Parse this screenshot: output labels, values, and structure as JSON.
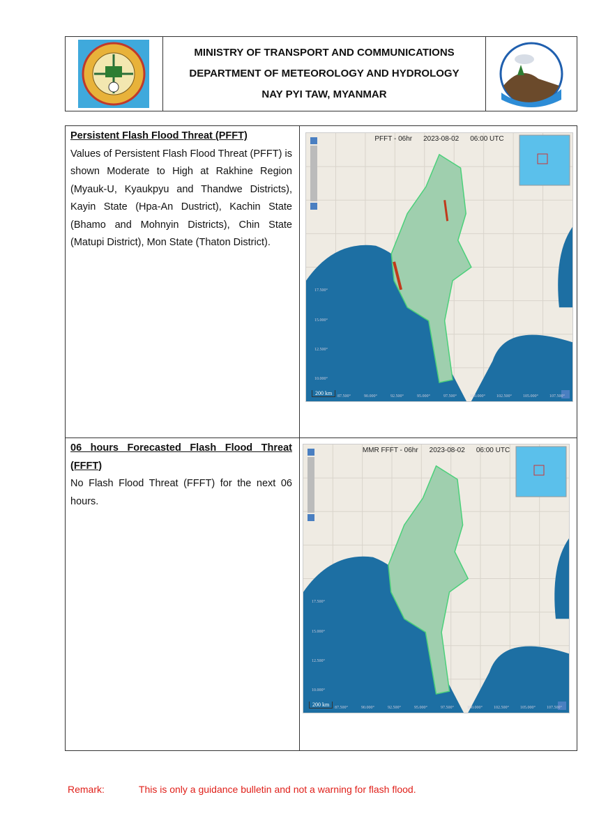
{
  "header": {
    "line1": "MINISTRY OF TRANSPORT AND COMMUNICATIONS",
    "line2": "DEPARTMENT OF METEOROLOGY AND HYDROLOGY",
    "line3": "NAY PYI TAW, MYANMAR"
  },
  "sections": [
    {
      "title": "Persistent Flash Flood Threat (PFFT)",
      "body": "Values of Persistent Flash Flood Threat (PFFT) is shown Moderate to High at Rakhine Region (Myauk-U, Kyaukpyu and Thandwe Districts), Kayin State (Hpa-An Dustrict), Kachin State (Bhamo and Mohnyin Districts), Chin State (Matupi District), Mon State (Thaton District).",
      "map": {
        "product": "PFFT - 06hr",
        "date": "2023-08-02",
        "time": "06:00 UTC",
        "scale": "200 km",
        "threat": true
      }
    },
    {
      "title": "06 hours Forecasted Flash Flood Threat (FFFT)",
      "body": "No Flash Flood Threat (FFFT) for the next 06 hours.",
      "map": {
        "product": "MMR FFFT - 06hr",
        "date": "2023-08-02",
        "time": "06:00 UTC",
        "scale": "200 km",
        "threat": false
      }
    }
  ],
  "map_labels": {
    "lat": [
      "17.500°",
      "15.000°",
      "12.500°",
      "10.000°"
    ],
    "lon": [
      "87.500°",
      "90.000°",
      "92.500°",
      "95.000°",
      "97.500°",
      "100.000°",
      "102.500°",
      "105.000°",
      "107.500°"
    ]
  },
  "remark": {
    "label": "Remark:",
    "text": "This is only a guidance bulletin and not a warning for flash flood."
  },
  "colors": {
    "remark": "#e0201a",
    "sea": "#1d6fa3",
    "land": "#efebe3",
    "threat": "#c0391b"
  }
}
